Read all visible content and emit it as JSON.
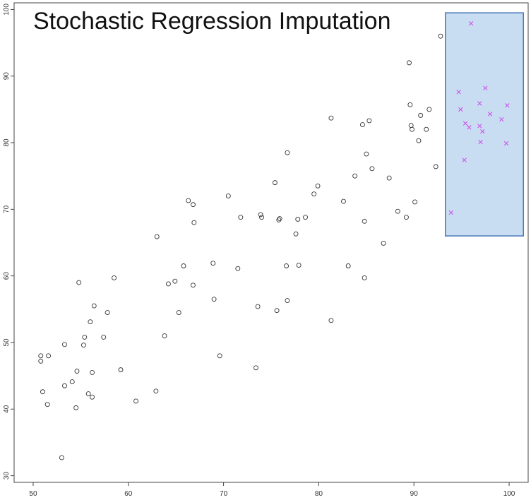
{
  "chart_data": {
    "type": "scatter",
    "title": "Stochastic Regression Imputation",
    "xlabel": "",
    "ylabel": "",
    "xlim": [
      48,
      102
    ],
    "ylim": [
      29,
      101
    ],
    "xticks": [
      "50",
      "60",
      "70",
      "80",
      "90",
      "100"
    ],
    "yticks": [
      "30",
      "40",
      "50",
      "60",
      "70",
      "80",
      "90",
      "100"
    ],
    "grid": false,
    "legend": "none",
    "highlight_region": {
      "x": [
        93.3,
        101.5
      ],
      "y": [
        66,
        99.5
      ],
      "color": "#c9ddf2",
      "stroke": "#4a78b8"
    },
    "series": [
      {
        "marker": "circle",
        "color": "#333333",
        "points": [
          [
            50.8,
            47.2
          ],
          [
            50.8,
            48.0
          ],
          [
            51.0,
            42.6
          ],
          [
            51.5,
            40.7
          ],
          [
            51.6,
            48.0
          ],
          [
            53.0,
            32.7
          ],
          [
            53.3,
            49.7
          ],
          [
            53.3,
            43.5
          ],
          [
            54.1,
            44.1
          ],
          [
            54.5,
            40.2
          ],
          [
            54.6,
            45.7
          ],
          [
            54.8,
            59.0
          ],
          [
            55.3,
            49.6
          ],
          [
            55.4,
            50.8
          ],
          [
            55.8,
            42.3
          ],
          [
            56.0,
            53.1
          ],
          [
            56.2,
            41.8
          ],
          [
            56.2,
            45.5
          ],
          [
            56.4,
            55.5
          ],
          [
            57.4,
            50.8
          ],
          [
            57.8,
            54.5
          ],
          [
            58.5,
            59.7
          ],
          [
            59.2,
            45.9
          ],
          [
            60.8,
            41.2
          ],
          [
            62.9,
            42.7
          ],
          [
            63.0,
            65.9
          ],
          [
            63.8,
            51.0
          ],
          [
            64.2,
            58.8
          ],
          [
            64.9,
            59.2
          ],
          [
            65.3,
            54.5
          ],
          [
            65.8,
            61.5
          ],
          [
            66.3,
            71.3
          ],
          [
            66.8,
            70.7
          ],
          [
            66.8,
            58.6
          ],
          [
            66.9,
            68.0
          ],
          [
            68.9,
            61.9
          ],
          [
            69.0,
            56.5
          ],
          [
            69.6,
            48.0
          ],
          [
            70.5,
            72.0
          ],
          [
            71.5,
            61.1
          ],
          [
            71.8,
            68.8
          ],
          [
            73.4,
            46.2
          ],
          [
            73.6,
            55.4
          ],
          [
            73.9,
            69.2
          ],
          [
            74.0,
            68.8
          ],
          [
            75.4,
            74.0
          ],
          [
            75.6,
            54.8
          ],
          [
            75.8,
            68.4
          ],
          [
            75.9,
            68.6
          ],
          [
            76.6,
            61.5
          ],
          [
            76.7,
            56.3
          ],
          [
            76.7,
            78.5
          ],
          [
            77.6,
            66.3
          ],
          [
            77.8,
            68.5
          ],
          [
            77.9,
            61.6
          ],
          [
            78.6,
            68.8
          ],
          [
            79.5,
            72.3
          ],
          [
            79.9,
            73.5
          ],
          [
            81.3,
            53.3
          ],
          [
            81.3,
            83.7
          ],
          [
            82.6,
            71.2
          ],
          [
            83.1,
            61.5
          ],
          [
            83.8,
            75.0
          ],
          [
            84.6,
            82.7
          ],
          [
            84.8,
            68.2
          ],
          [
            84.8,
            59.7
          ],
          [
            85.0,
            78.3
          ],
          [
            85.3,
            83.3
          ],
          [
            85.6,
            76.1
          ],
          [
            86.8,
            64.9
          ],
          [
            87.4,
            74.7
          ],
          [
            88.3,
            69.7
          ],
          [
            89.2,
            68.8
          ],
          [
            89.5,
            92.0
          ],
          [
            89.6,
            85.7
          ],
          [
            89.7,
            82.6
          ],
          [
            89.8,
            82.0
          ],
          [
            90.1,
            71.1
          ],
          [
            90.5,
            80.3
          ],
          [
            90.7,
            84.1
          ],
          [
            91.3,
            82.0
          ],
          [
            91.6,
            85.0
          ],
          [
            92.3,
            76.4
          ],
          [
            92.8,
            96.0
          ]
        ]
      },
      {
        "marker": "x",
        "color": "#cc55ee",
        "points": [
          [
            93.9,
            69.5
          ],
          [
            94.7,
            87.6
          ],
          [
            94.9,
            85.0
          ],
          [
            95.3,
            77.4
          ],
          [
            95.4,
            82.9
          ],
          [
            95.8,
            82.3
          ],
          [
            96.0,
            97.9
          ],
          [
            96.9,
            82.5
          ],
          [
            96.9,
            85.9
          ],
          [
            97.0,
            80.1
          ],
          [
            97.2,
            81.7
          ],
          [
            97.5,
            88.2
          ],
          [
            98.0,
            84.3
          ],
          [
            99.2,
            83.5
          ],
          [
            99.7,
            79.9
          ],
          [
            99.8,
            85.6
          ]
        ]
      }
    ]
  }
}
